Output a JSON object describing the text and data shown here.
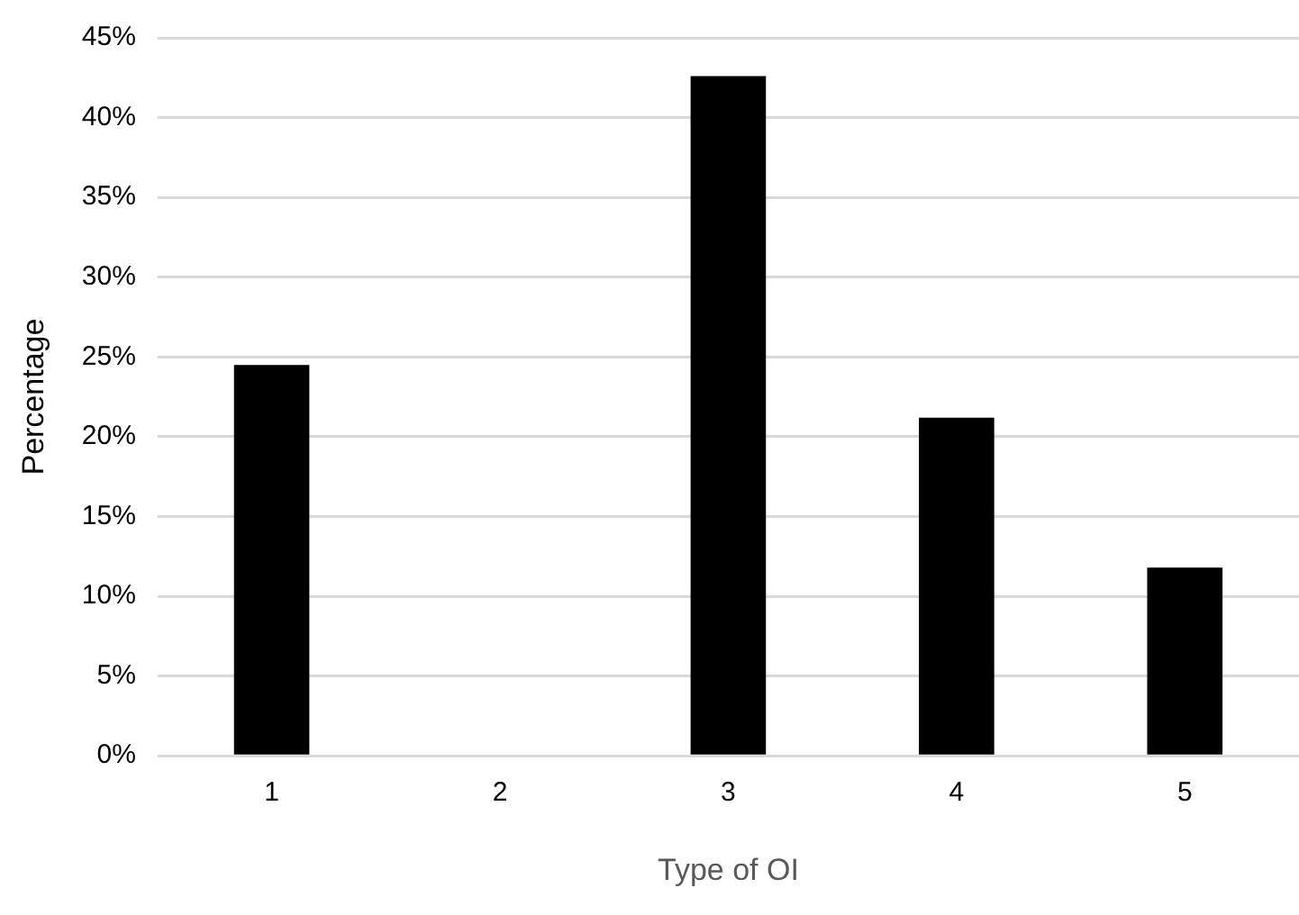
{
  "chart_data": {
    "type": "bar",
    "categories": [
      "1",
      "2",
      "3",
      "4",
      "5"
    ],
    "values": [
      24.5,
      0,
      42.6,
      21.2,
      11.8
    ],
    "color": "#000000",
    "xlabel": "Type of OI",
    "ylabel": "Percentage",
    "ylim": [
      0,
      45
    ],
    "yticks": [
      {
        "value": 0,
        "label": "0%"
      },
      {
        "value": 5,
        "label": "5%"
      },
      {
        "value": 10,
        "label": "10%"
      },
      {
        "value": 15,
        "label": "15%"
      },
      {
        "value": 20,
        "label": "20%"
      },
      {
        "value": 25,
        "label": "25%"
      },
      {
        "value": 30,
        "label": "30%"
      },
      {
        "value": 35,
        "label": "35%"
      },
      {
        "value": 40,
        "label": "40%"
      },
      {
        "value": 45,
        "label": "45%"
      }
    ],
    "grid": "y",
    "legend": false
  }
}
